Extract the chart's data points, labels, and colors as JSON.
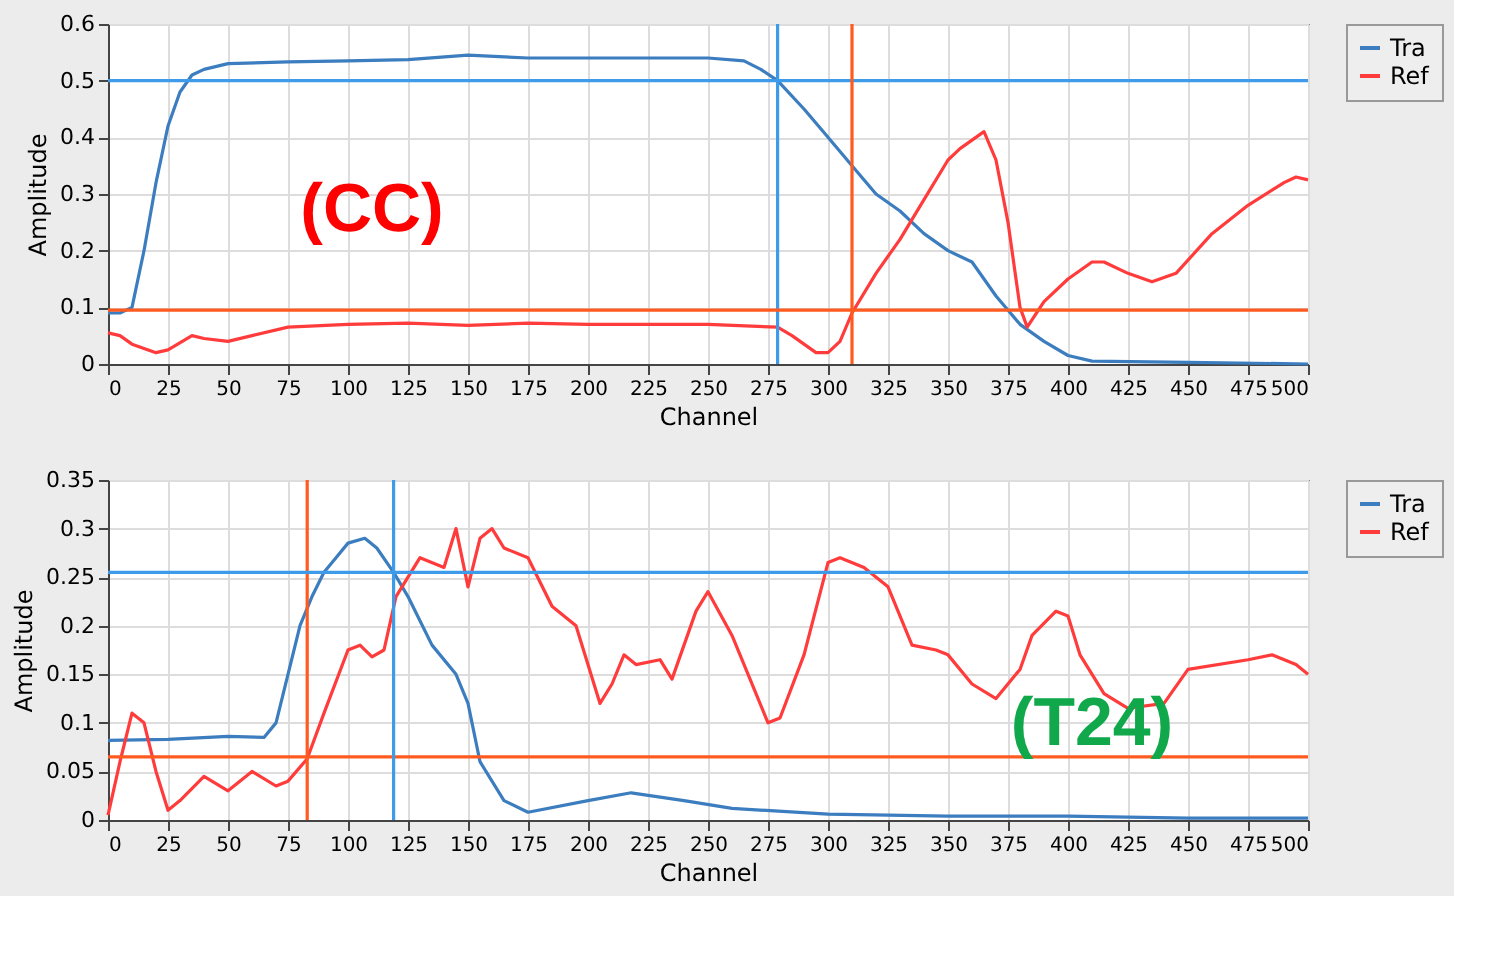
{
  "chart_data": [
    {
      "type": "line",
      "xlabel": "Channel",
      "ylabel": "Amplitude",
      "xlim": [
        0,
        500
      ],
      "ylim": [
        0,
        0.6
      ],
      "xticks": [
        0,
        25,
        50,
        75,
        100,
        125,
        150,
        175,
        200,
        225,
        250,
        275,
        300,
        325,
        350,
        375,
        400,
        425,
        450,
        475,
        500
      ],
      "yticks": [
        0,
        0.1,
        0.2,
        0.3,
        0.4,
        0.5,
        0.6
      ],
      "grid": true,
      "legend": "top right",
      "annotations": [
        "(CC)"
      ],
      "ref_lines": [
        {
          "axis": "x",
          "value": 279,
          "color": "#3d9be9"
        },
        {
          "axis": "y",
          "value": 0.5,
          "color": "#3d9be9"
        },
        {
          "axis": "x",
          "value": 310,
          "color": "#ff5a1f"
        },
        {
          "axis": "y",
          "value": 0.095,
          "color": "#ff5a1f"
        }
      ],
      "series": [
        {
          "name": "Tra",
          "color": "#3b7dbf",
          "x": [
            0,
            5,
            10,
            15,
            20,
            25,
            30,
            35,
            40,
            50,
            75,
            100,
            125,
            150,
            175,
            200,
            225,
            250,
            265,
            272,
            279,
            290,
            300,
            310,
            320,
            330,
            340,
            350,
            360,
            370,
            380,
            390,
            400,
            410,
            450,
            500
          ],
          "values": [
            0.09,
            0.09,
            0.1,
            0.2,
            0.32,
            0.42,
            0.48,
            0.51,
            0.52,
            0.53,
            0.533,
            0.535,
            0.537,
            0.545,
            0.54,
            0.54,
            0.54,
            0.54,
            0.535,
            0.52,
            0.5,
            0.45,
            0.4,
            0.35,
            0.3,
            0.27,
            0.23,
            0.2,
            0.18,
            0.12,
            0.07,
            0.04,
            0.015,
            0.005,
            0.003,
            0.0
          ]
        },
        {
          "name": "Ref",
          "color": "#ff3b3b",
          "x": [
            0,
            5,
            10,
            20,
            25,
            35,
            40,
            50,
            60,
            75,
            100,
            125,
            150,
            175,
            200,
            250,
            279,
            285,
            295,
            300,
            305,
            310,
            320,
            330,
            340,
            350,
            355,
            365,
            370,
            375,
            380,
            383,
            390,
            400,
            410,
            415,
            425,
            435,
            445,
            460,
            475,
            490,
            495,
            500
          ],
          "values": [
            0.055,
            0.05,
            0.035,
            0.02,
            0.025,
            0.05,
            0.045,
            0.04,
            0.05,
            0.065,
            0.07,
            0.072,
            0.068,
            0.072,
            0.07,
            0.07,
            0.065,
            0.05,
            0.02,
            0.02,
            0.04,
            0.09,
            0.16,
            0.22,
            0.29,
            0.36,
            0.38,
            0.41,
            0.36,
            0.25,
            0.1,
            0.065,
            0.11,
            0.15,
            0.18,
            0.18,
            0.16,
            0.145,
            0.16,
            0.23,
            0.28,
            0.32,
            0.33,
            0.325
          ]
        }
      ]
    },
    {
      "type": "line",
      "xlabel": "Channel",
      "ylabel": "Amplitude",
      "xlim": [
        0,
        500
      ],
      "ylim": [
        0,
        0.35
      ],
      "xticks": [
        0,
        25,
        50,
        75,
        100,
        125,
        150,
        175,
        200,
        225,
        250,
        275,
        300,
        325,
        350,
        375,
        400,
        425,
        450,
        475,
        500
      ],
      "yticks": [
        0,
        0.05,
        0.1,
        0.15,
        0.2,
        0.25,
        0.3,
        0.35
      ],
      "grid": true,
      "legend": "top right",
      "annotations": [
        "(T24)"
      ],
      "ref_lines": [
        {
          "axis": "x",
          "value": 83,
          "color": "#ff5a1f"
        },
        {
          "axis": "y",
          "value": 0.065,
          "color": "#ff5a1f"
        },
        {
          "axis": "x",
          "value": 119,
          "color": "#3d9be9"
        },
        {
          "axis": "y",
          "value": 0.255,
          "color": "#3d9be9"
        }
      ],
      "series": [
        {
          "name": "Tra",
          "color": "#3b7dbf",
          "x": [
            0,
            25,
            50,
            65,
            70,
            75,
            80,
            85,
            90,
            95,
            100,
            107,
            112,
            119,
            125,
            135,
            145,
            150,
            155,
            165,
            175,
            200,
            218,
            240,
            260,
            300,
            350,
            400,
            450,
            500
          ],
          "values": [
            0.082,
            0.083,
            0.086,
            0.085,
            0.1,
            0.15,
            0.2,
            0.23,
            0.255,
            0.27,
            0.285,
            0.29,
            0.28,
            0.255,
            0.23,
            0.18,
            0.15,
            0.12,
            0.06,
            0.02,
            0.008,
            0.02,
            0.028,
            0.02,
            0.012,
            0.006,
            0.004,
            0.004,
            0.002,
            0.002
          ]
        },
        {
          "name": "Ref",
          "color": "#ff3b3b",
          "x": [
            0,
            5,
            10,
            15,
            20,
            25,
            30,
            40,
            50,
            60,
            70,
            75,
            83,
            90,
            100,
            105,
            110,
            115,
            120,
            130,
            140,
            145,
            150,
            155,
            160,
            165,
            175,
            185,
            195,
            205,
            210,
            215,
            220,
            230,
            235,
            245,
            250,
            260,
            270,
            275,
            280,
            290,
            300,
            305,
            315,
            325,
            335,
            345,
            350,
            360,
            370,
            380,
            385,
            395,
            400,
            405,
            415,
            425,
            440,
            450,
            475,
            485,
            495,
            500
          ],
          "values": [
            0.005,
            0.06,
            0.11,
            0.1,
            0.05,
            0.01,
            0.02,
            0.045,
            0.03,
            0.05,
            0.035,
            0.04,
            0.063,
            0.11,
            0.175,
            0.18,
            0.168,
            0.175,
            0.23,
            0.27,
            0.26,
            0.3,
            0.24,
            0.29,
            0.3,
            0.28,
            0.27,
            0.22,
            0.2,
            0.12,
            0.14,
            0.17,
            0.16,
            0.165,
            0.145,
            0.215,
            0.235,
            0.19,
            0.13,
            0.1,
            0.105,
            0.17,
            0.265,
            0.27,
            0.26,
            0.24,
            0.18,
            0.175,
            0.17,
            0.14,
            0.125,
            0.155,
            0.19,
            0.215,
            0.21,
            0.17,
            0.13,
            0.115,
            0.12,
            0.155,
            0.165,
            0.17,
            0.16,
            0.15
          ]
        }
      ]
    }
  ]
}
